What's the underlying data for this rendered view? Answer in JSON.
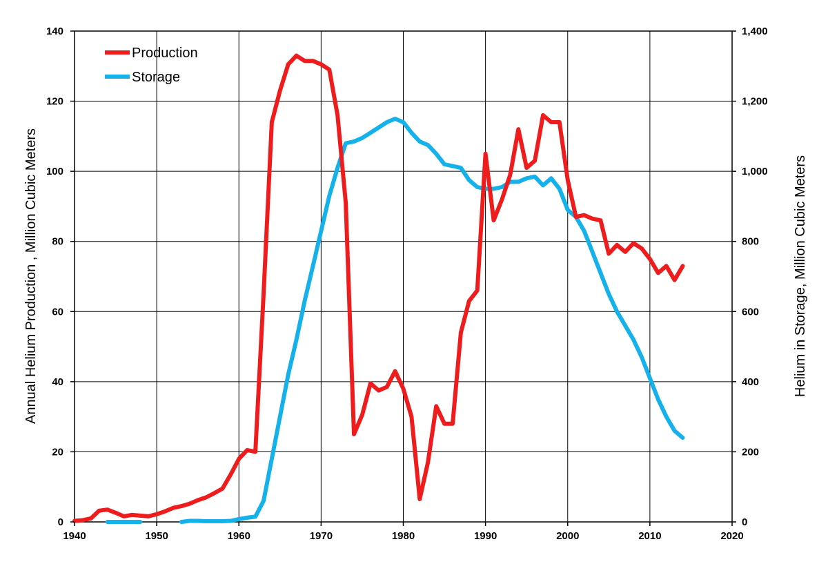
{
  "chart_data": {
    "type": "line",
    "title": "",
    "xlabel": "",
    "ylabel": "Annual Helium Production , Million Cubic Meters",
    "y2label": "Helium in Storage, Million Cubic Meters",
    "xlim": [
      1940,
      2020
    ],
    "ylim": [
      0,
      140
    ],
    "y2lim": [
      0,
      1400
    ],
    "x_ticks": [
      1940,
      1950,
      1960,
      1970,
      1980,
      1990,
      2000,
      2010,
      2020
    ],
    "y_ticks": [
      0,
      20,
      40,
      60,
      80,
      100,
      120,
      140
    ],
    "y2_ticks": [
      0,
      200,
      400,
      600,
      800,
      1000,
      1200,
      1400
    ],
    "y2_tick_labels": [
      "0",
      "200",
      "400",
      "600",
      "800",
      "1,000",
      "1,200",
      "1,400"
    ],
    "grid": true,
    "legend_position": "top-left",
    "series": [
      {
        "name": "Production",
        "axis": "left",
        "color": "#ee1c1c",
        "x": [
          1940,
          1941,
          1942,
          1943,
          1944,
          1945,
          1946,
          1947,
          1948,
          1949,
          1950,
          1951,
          1952,
          1953,
          1954,
          1955,
          1956,
          1957,
          1958,
          1959,
          1960,
          1961,
          1962,
          1963,
          1964,
          1965,
          1966,
          1967,
          1968,
          1969,
          1970,
          1971,
          1972,
          1973,
          1974,
          1975,
          1976,
          1977,
          1978,
          1979,
          1980,
          1981,
          1982,
          1983,
          1984,
          1985,
          1986,
          1987,
          1988,
          1989,
          1990,
          1991,
          1992,
          1993,
          1994,
          1995,
          1996,
          1997,
          1998,
          1999,
          2000,
          2001,
          2002,
          2003,
          2004,
          2005,
          2006,
          2007,
          2008,
          2009,
          2010,
          2011,
          2012,
          2013,
          2014
        ],
        "values": [
          0.3,
          0.5,
          1.0,
          3.2,
          3.5,
          2.6,
          1.6,
          2.0,
          1.8,
          1.6,
          2.2,
          3.0,
          4.0,
          4.5,
          5.2,
          6.2,
          7.0,
          8.2,
          9.5,
          13.5,
          18.0,
          20.5,
          20.0,
          65.0,
          114.0,
          123.0,
          130.5,
          133.0,
          131.5,
          131.5,
          130.5,
          129.0,
          116.0,
          91.0,
          25.0,
          30.5,
          39.5,
          37.5,
          38.5,
          43.0,
          38.0,
          30.0,
          6.5,
          17.0,
          33.0,
          28.0,
          28.0,
          54.0,
          63.0,
          66.0,
          105.0,
          86.0,
          92.0,
          99.0,
          112.0,
          101.0,
          103.0,
          116.0,
          114.0,
          114.0,
          97.5,
          87.0,
          87.5,
          86.5,
          86.0,
          76.5,
          79.0,
          77.0,
          79.5,
          78.0,
          75.0,
          71.0,
          73.0,
          69.0,
          73.0
        ]
      },
      {
        "name": "Storage",
        "axis": "right",
        "color": "#15b1ea",
        "segments": [
          {
            "x": [
              1944,
              1945,
              1946,
              1947,
              1948
            ],
            "values": [
              0,
              0,
              0,
              0,
              0
            ]
          },
          {
            "x": [
              1953,
              1954,
              1955,
              1956,
              1957,
              1958,
              1959,
              1960,
              1961,
              1962,
              1963,
              1964,
              1965,
              1966,
              1967,
              1968,
              1969,
              1970,
              1971,
              1972,
              1973,
              1974,
              1975,
              1976,
              1977,
              1978,
              1979,
              1980,
              1981,
              1982,
              1983,
              1984,
              1985,
              1986,
              1987,
              1988,
              1989,
              1990,
              1991,
              1992,
              1993,
              1994,
              1995,
              1996,
              1997,
              1998,
              1999,
              2000,
              2001,
              2002,
              2003,
              2004,
              2005,
              2006,
              2007,
              2008,
              2009,
              2010,
              2011,
              2012,
              2013,
              2014
            ],
            "values": [
              0,
              3,
              3,
              2,
              2,
              2,
              3,
              8,
              12,
              15,
              60,
              180,
              300,
              420,
              520,
              630,
              730,
              830,
              930,
              1010,
              1080,
              1085,
              1095,
              1110,
              1125,
              1140,
              1150,
              1140,
              1110,
              1085,
              1075,
              1050,
              1020,
              1015,
              1010,
              975,
              955,
              950,
              950,
              955,
              970,
              970,
              980,
              985,
              960,
              980,
              950,
              890,
              870,
              830,
              770,
              710,
              650,
              600,
              560,
              520,
              470,
              410,
              350,
              300,
              260,
              240
            ]
          }
        ]
      }
    ]
  }
}
